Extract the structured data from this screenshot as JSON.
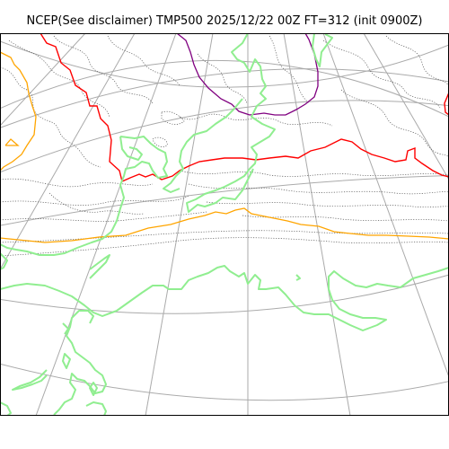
{
  "map": {
    "title": "NCEP(See disclaimer) TMP500 2025/12/22 00Z FT=312 (init 0900Z)"
  },
  "colors": {
    "background": "#ffffff",
    "frame": "#000000",
    "graticule": "#aaaaaa",
    "coastline": "#90ee90",
    "isotherm_contour": "#555555",
    "contour_red": "#ff0000",
    "contour_orange": "#ffa500",
    "contour_purple": "#800080"
  },
  "legend_note": {
    "coastline": "light green",
    "temperature_contours": "dotted dark gray",
    "highlight_contours": [
      "red",
      "orange",
      "purple"
    ]
  }
}
